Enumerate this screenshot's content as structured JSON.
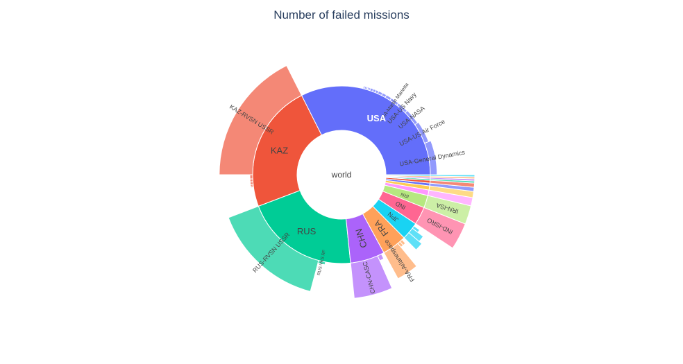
{
  "chart_data": {
    "type": "sunburst",
    "title": "Number of failed missions",
    "root": "world",
    "children": [
      {
        "name": "USA",
        "value": 129,
        "color": "#636efa",
        "children": [
          {
            "name": "USA-General Dynamics",
            "value": 23
          },
          {
            "name": "USA-US Air Force",
            "value": 15
          },
          {
            "name": "USA-NASA",
            "value": 11
          },
          {
            "name": "USA-US Navy",
            "value": 8
          },
          {
            "name": "USA-Martin Marietta",
            "value": 6
          },
          {
            "name": "",
            "value": 4
          },
          {
            "name": "",
            "value": 3
          },
          {
            "name": "",
            "value": 3
          },
          {
            "name": "",
            "value": 2
          },
          {
            "name": "",
            "value": 2
          },
          {
            "name": "",
            "value": 2
          },
          {
            "name": "",
            "value": 1
          },
          {
            "name": "",
            "value": 1
          },
          {
            "name": "",
            "value": 1
          },
          {
            "name": "",
            "value": 1
          },
          {
            "name": "",
            "value": 1
          }
        ]
      },
      {
        "name": "KAZ",
        "value": 93,
        "color": "#ef553b",
        "children": [
          {
            "name": "KAZ-RVSN USSR",
            "value": 70
          },
          {
            "name": "",
            "value": 3
          },
          {
            "name": "",
            "value": 2
          },
          {
            "name": "",
            "value": 2
          },
          {
            "name": "",
            "value": 1
          },
          {
            "name": "",
            "value": 1
          }
        ]
      },
      {
        "name": "RUS",
        "value": 83,
        "color": "#00cc96",
        "children": [
          {
            "name": "RUS-RVSN USSR",
            "value": 60
          },
          {
            "name": "RUS-VKS RF",
            "value": 5
          }
        ]
      },
      {
        "name": "CHN",
        "value": 25,
        "color": "#ab63fa",
        "children": [
          {
            "name": "CHN-CASC",
            "value": 20
          },
          {
            "name": "",
            "value": 3
          }
        ]
      },
      {
        "name": "FRA",
        "value": 18,
        "color": "#ffa15a",
        "children": [
          {
            "name": "FRA-Arianespace",
            "value": 12
          },
          {
            "name": "",
            "value": 2
          },
          {
            "name": "",
            "value": 2
          }
        ]
      },
      {
        "name": "JPN",
        "value": 13,
        "color": "#19d3f3",
        "children": [
          {
            "name": "",
            "value": 5
          },
          {
            "name": "",
            "value": 4
          },
          {
            "name": "",
            "value": 2
          }
        ]
      },
      {
        "name": "IND",
        "value": 13,
        "color": "#ff6692",
        "children": [
          {
            "name": "IND-ISRO",
            "value": 13
          }
        ]
      },
      {
        "name": "IRN",
        "value": 9,
        "color": "#b6e880",
        "children": [
          {
            "name": "IRN-ISA",
            "value": 9
          }
        ]
      },
      {
        "name": "",
        "value": 4,
        "color": "#ff97ff",
        "children": [
          {
            "name": "",
            "value": 4
          }
        ]
      },
      {
        "name": "",
        "value": 3,
        "color": "#fecb52",
        "children": [
          {
            "name": "",
            "value": 3
          }
        ]
      },
      {
        "name": "",
        "value": 2,
        "color": "#636efa",
        "children": [
          {
            "name": "",
            "value": 2
          }
        ]
      },
      {
        "name": "",
        "value": 2,
        "color": "#ef553b",
        "children": [
          {
            "name": "",
            "value": 2
          }
        ]
      },
      {
        "name": "",
        "value": 1,
        "color": "#00cc96",
        "children": [
          {
            "name": "",
            "value": 1
          }
        ]
      },
      {
        "name": "",
        "value": 1,
        "color": "#ab63fa",
        "children": [
          {
            "name": "",
            "value": 1
          }
        ]
      },
      {
        "name": "",
        "value": 1,
        "color": "#ffa15a",
        "children": [
          {
            "name": "",
            "value": 1
          }
        ]
      },
      {
        "name": "",
        "value": 1,
        "color": "#19d3f3",
        "children": [
          {
            "name": "",
            "value": 1
          }
        ]
      }
    ]
  }
}
